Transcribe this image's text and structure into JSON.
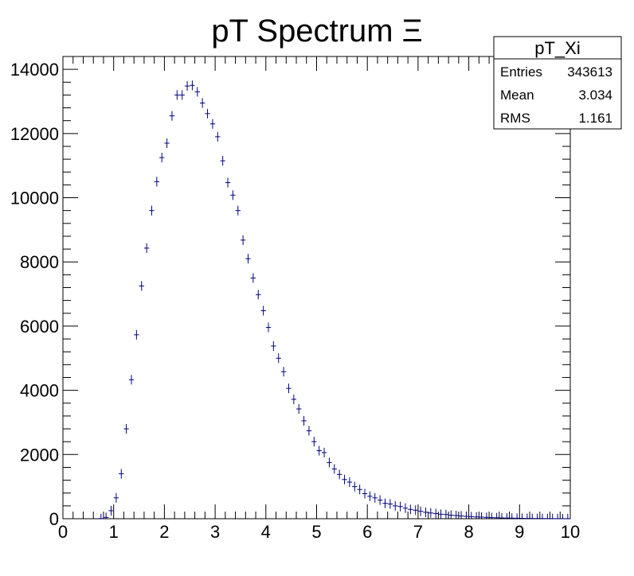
{
  "chart_data": {
    "type": "scatter",
    "title": "pT Spectrum  Ξ",
    "xlabel": "",
    "ylabel": "",
    "xlim": [
      0,
      10
    ],
    "ylim": [
      0,
      14400
    ],
    "x_major_ticks": [
      0,
      1,
      2,
      3,
      4,
      5,
      6,
      7,
      8,
      9,
      10
    ],
    "y_major_ticks": [
      0,
      2000,
      4000,
      6000,
      8000,
      10000,
      12000,
      14000
    ],
    "x_tick_labels": [
      "0",
      "1",
      "2",
      "3",
      "4",
      "5",
      "6",
      "7",
      "8",
      "9",
      "10"
    ],
    "y_tick_labels": [
      "0",
      "2000",
      "4000",
      "6000",
      "8000",
      "10000",
      "12000",
      "14000"
    ],
    "bin_width": 0.1,
    "marker_color": "#000080",
    "stats_box": {
      "name": "pT_Xi",
      "rows": [
        {
          "label": "Entries",
          "value": "343613"
        },
        {
          "label": "Mean",
          "value": "3.034"
        },
        {
          "label": "RMS",
          "value": "1.161"
        }
      ]
    },
    "series": [
      {
        "x": [
          0.75,
          0.85,
          0.95,
          1.05,
          1.15,
          1.25,
          1.35,
          1.45,
          1.55,
          1.65,
          1.75,
          1.85,
          1.95,
          2.05,
          2.15,
          2.25,
          2.35,
          2.45,
          2.55,
          2.65,
          2.75,
          2.85,
          2.95,
          3.05,
          3.15,
          3.25,
          3.35,
          3.45,
          3.55,
          3.65,
          3.75,
          3.85,
          3.95,
          4.05,
          4.15,
          4.25,
          4.35,
          4.45,
          4.55,
          4.65,
          4.75,
          4.85,
          4.95,
          5.05,
          5.15,
          5.25,
          5.35,
          5.45,
          5.55,
          5.65,
          5.75,
          5.85,
          5.95,
          6.05,
          6.15,
          6.25,
          6.35,
          6.45,
          6.55,
          6.65,
          6.75,
          6.85,
          6.95,
          7.05,
          7.15,
          7.25,
          7.35,
          7.45,
          7.55,
          7.65,
          7.75,
          7.85,
          7.95,
          8.05,
          8.15,
          8.25,
          8.35,
          8.45,
          8.55,
          8.65,
          8.75,
          8.85,
          8.95,
          9.05,
          9.15,
          9.25,
          9.35,
          9.45,
          9.55,
          9.65,
          9.75,
          9.85,
          9.95
        ],
        "y": [
          5,
          40,
          250,
          650,
          1400,
          2800,
          4330,
          5730,
          7250,
          8430,
          9600,
          10500,
          11250,
          11700,
          12550,
          13200,
          13200,
          13480,
          13500,
          13300,
          12950,
          12620,
          12300,
          11900,
          11150,
          10470,
          10080,
          9600,
          8680,
          8100,
          7500,
          6980,
          6480,
          5960,
          5380,
          5000,
          4580,
          4060,
          3720,
          3420,
          3050,
          2740,
          2400,
          2120,
          2060,
          1750,
          1550,
          1380,
          1220,
          1140,
          1000,
          910,
          780,
          700,
          650,
          580,
          480,
          460,
          400,
          380,
          330,
          290,
          265,
          230,
          200,
          180,
          160,
          140,
          130,
          110,
          100,
          85,
          75,
          65,
          55,
          50,
          42,
          35,
          30,
          25,
          22,
          18,
          15,
          12,
          10,
          8,
          7,
          6,
          5,
          4,
          3,
          2,
          2
        ]
      }
    ]
  }
}
